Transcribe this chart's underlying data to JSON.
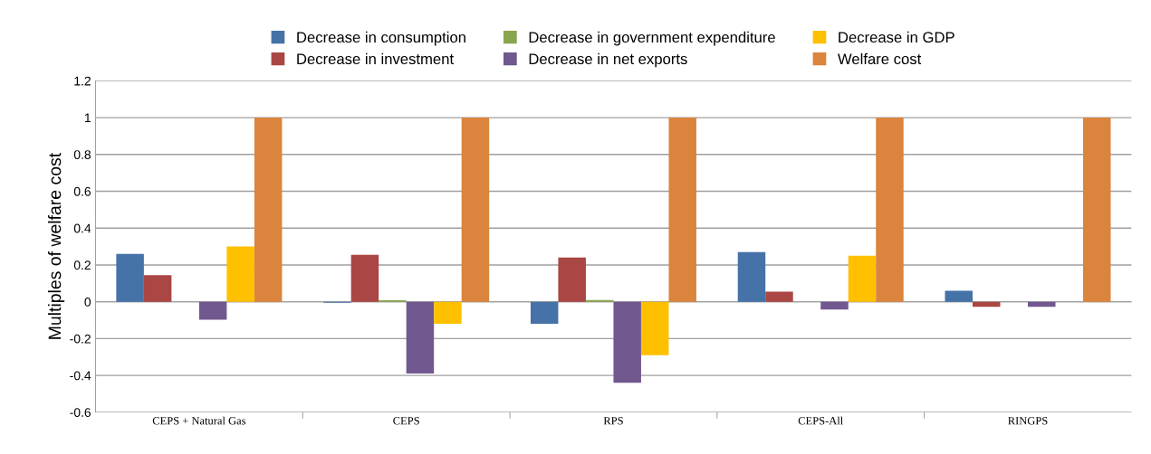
{
  "chart_data": {
    "type": "bar",
    "ylabel": "Multiples of welfare cost",
    "categories": [
      "CEPS + Natural Gas",
      "CEPS",
      "RPS",
      "CEPS-All",
      "RINGPS"
    ],
    "series": [
      {
        "name": "Decrease in consumption",
        "color": "#4572a7",
        "values": [
          0.26,
          -0.005,
          -0.12,
          0.27,
          0.06
        ]
      },
      {
        "name": "Decrease in investment",
        "color": "#aa4643",
        "values": [
          0.145,
          0.255,
          0.24,
          0.055,
          -0.027
        ]
      },
      {
        "name": "Decrease in government expenditure",
        "color": "#89a54e",
        "values": [
          0,
          0.008,
          0.01,
          null,
          null
        ]
      },
      {
        "name": "Decrease in net exports",
        "color": "#71588f",
        "values": [
          -0.097,
          -0.39,
          -0.44,
          -0.042,
          -0.027
        ]
      },
      {
        "name": "Decrease in GDP",
        "color": "#ffc000",
        "values": [
          0.3,
          -0.12,
          -0.29,
          0.25,
          0
        ]
      },
      {
        "name": "Welfare cost",
        "color": "#db843d",
        "values": [
          1,
          1,
          1,
          1,
          1
        ]
      }
    ],
    "ylim": [
      -0.6,
      1.2
    ],
    "yticks": [
      -0.6,
      -0.4,
      -0.2,
      0,
      0.2,
      0.4,
      0.6,
      0.8,
      1,
      1.2
    ],
    "grid": "y",
    "legend": "top"
  }
}
